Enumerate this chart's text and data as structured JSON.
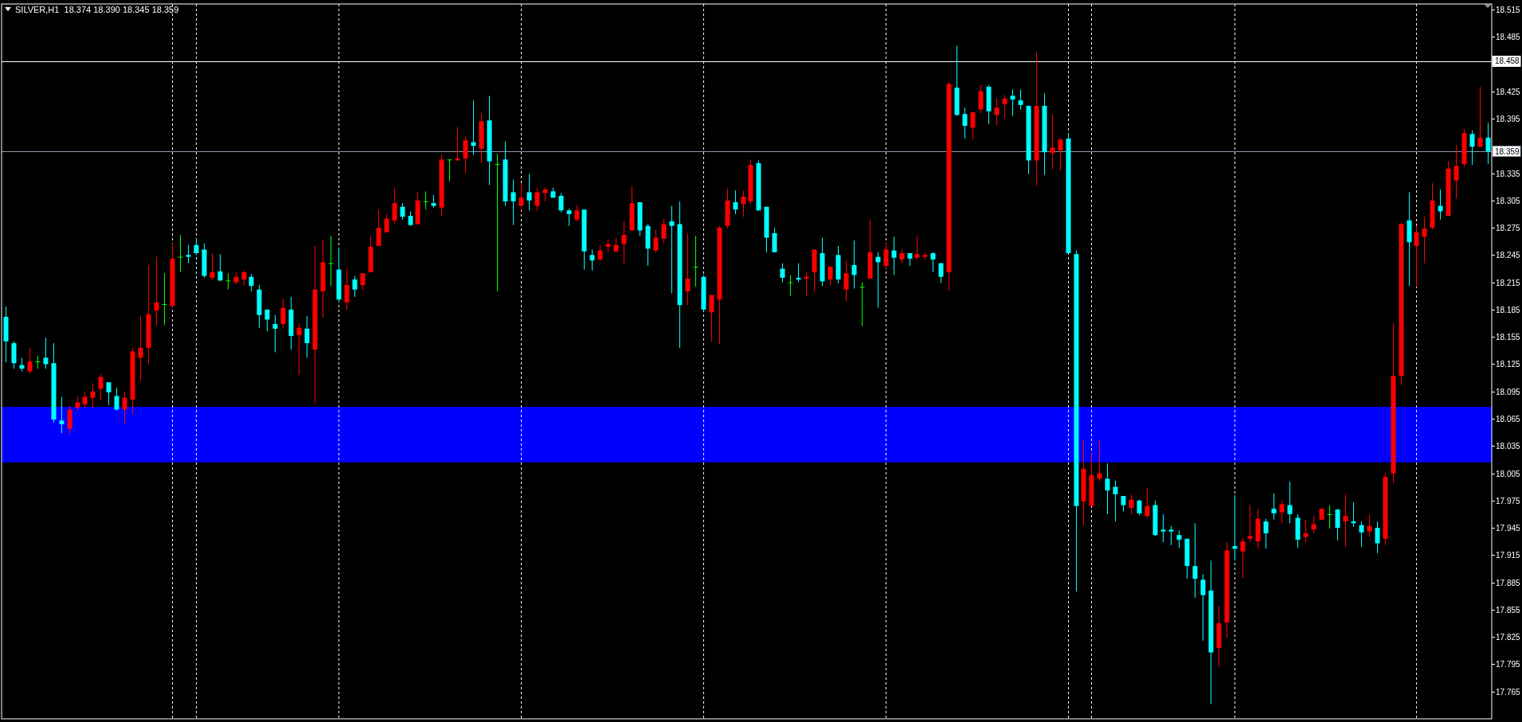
{
  "chart_data": {
    "type": "candlestick",
    "title": "SILVER,H1  18.374 18.390 18.345 18.359",
    "categories": [
      null,
      null,
      null,
      null,
      null,
      null,
      null,
      null,
      null,
      null,
      null,
      null,
      null,
      null,
      null,
      null,
      null,
      null,
      null,
      null,
      null,
      null,
      null,
      null,
      null,
      null,
      null,
      null,
      null,
      null,
      null,
      null,
      null,
      null,
      null,
      null,
      null,
      null,
      null,
      null,
      null,
      null,
      null,
      null,
      null,
      null,
      null,
      null,
      null,
      null,
      null,
      null,
      null,
      null,
      null,
      null,
      null,
      null,
      null,
      null,
      null,
      null,
      null,
      null,
      null,
      null,
      null,
      null,
      null,
      null,
      null,
      null,
      null,
      null,
      null,
      null,
      null,
      null,
      null,
      null,
      null,
      null,
      null,
      null,
      null,
      null,
      null,
      null,
      null,
      null,
      null,
      null,
      null,
      null,
      null,
      null,
      null,
      null,
      null,
      null,
      null,
      null,
      null,
      null,
      null,
      null,
      null,
      null,
      null,
      null,
      null,
      null,
      null,
      null,
      null,
      null,
      null,
      null,
      null,
      null,
      null,
      null,
      null,
      null,
      null,
      null,
      null,
      null,
      null,
      null,
      null,
      null,
      null,
      null,
      null,
      null,
      null,
      null,
      null,
      null,
      null,
      null,
      null,
      null,
      null,
      null,
      null,
      null,
      null,
      null,
      null,
      null,
      null,
      null,
      null,
      null,
      null,
      null,
      null,
      null,
      null,
      null,
      null,
      null,
      null,
      null,
      null,
      null,
      null,
      null,
      null,
      null,
      null,
      null,
      null,
      null,
      null,
      null,
      null,
      null,
      null,
      null,
      null,
      null,
      null,
      null,
      null,
      null
    ],
    "ohlc": [
      [
        18.177,
        18.188,
        18.127,
        18.15
      ],
      [
        18.148,
        18.15,
        18.12,
        18.126
      ],
      [
        18.124,
        18.132,
        18.117,
        18.12
      ],
      [
        18.117,
        18.143,
        18.115,
        18.128
      ],
      [
        18.128,
        18.134,
        18.12,
        18.128
      ],
      [
        18.132,
        18.154,
        18.12,
        18.125
      ],
      [
        18.126,
        18.148,
        18.061,
        18.064
      ],
      [
        18.063,
        18.089,
        18.049,
        18.059
      ],
      [
        18.054,
        18.079,
        18.048,
        18.075
      ],
      [
        18.077,
        18.089,
        18.074,
        18.083
      ],
      [
        18.081,
        18.094,
        18.077,
        18.089
      ],
      [
        18.088,
        18.104,
        18.077,
        18.095
      ],
      [
        18.098,
        18.114,
        18.085,
        18.111
      ],
      [
        18.105,
        18.105,
        18.08,
        18.094
      ],
      [
        18.09,
        18.099,
        18.074,
        18.075
      ],
      [
        18.075,
        18.094,
        18.06,
        18.088
      ],
      [
        18.086,
        18.143,
        18.07,
        18.139
      ],
      [
        18.132,
        18.178,
        18.107,
        18.143
      ],
      [
        18.143,
        18.234,
        18.125,
        18.18
      ],
      [
        18.184,
        18.243,
        18.168,
        18.193
      ],
      [
        18.191,
        18.225,
        18.168,
        18.191
      ],
      [
        18.189,
        18.258,
        18.188,
        18.241
      ],
      [
        18.243,
        18.267,
        18.226,
        18.243
      ],
      [
        18.245,
        18.256,
        18.236,
        18.243
      ],
      [
        18.256,
        18.263,
        18.245,
        18.247
      ],
      [
        18.251,
        18.258,
        18.22,
        18.222
      ],
      [
        18.22,
        18.247,
        18.217,
        18.226
      ],
      [
        18.227,
        18.246,
        18.216,
        18.217
      ],
      [
        18.217,
        18.225,
        18.207,
        18.217
      ],
      [
        18.215,
        18.226,
        18.213,
        18.221
      ],
      [
        18.218,
        18.228,
        18.211,
        18.226
      ],
      [
        18.221,
        18.224,
        18.205,
        18.211
      ],
      [
        18.207,
        18.212,
        18.165,
        18.179
      ],
      [
        18.185,
        18.185,
        18.161,
        18.174
      ],
      [
        18.169,
        18.179,
        18.138,
        18.164
      ],
      [
        18.169,
        18.197,
        18.164,
        18.187
      ],
      [
        18.185,
        18.199,
        18.141,
        18.156
      ],
      [
        18.157,
        18.17,
        18.113,
        18.165
      ],
      [
        18.164,
        18.178,
        18.132,
        18.148
      ],
      [
        18.141,
        18.255,
        18.082,
        18.207
      ],
      [
        18.205,
        18.262,
        18.176,
        18.237
      ],
      [
        18.236,
        18.266,
        18.211,
        18.236
      ],
      [
        18.229,
        18.253,
        18.193,
        18.196
      ],
      [
        18.193,
        18.23,
        18.185,
        18.212
      ],
      [
        18.218,
        18.222,
        18.199,
        18.207
      ],
      [
        18.212,
        18.225,
        18.207,
        18.225
      ],
      [
        18.226,
        18.266,
        18.226,
        18.254
      ],
      [
        18.255,
        18.295,
        18.255,
        18.275
      ],
      [
        18.27,
        18.29,
        18.27,
        18.285
      ],
      [
        18.283,
        18.319,
        18.279,
        18.302
      ],
      [
        18.298,
        18.302,
        18.284,
        18.287
      ],
      [
        18.288,
        18.293,
        18.277,
        18.278
      ],
      [
        18.279,
        18.314,
        18.278,
        18.305
      ],
      [
        18.304,
        18.315,
        18.295,
        18.304
      ],
      [
        18.302,
        18.311,
        18.297,
        18.299
      ],
      [
        18.297,
        18.355,
        18.288,
        18.35
      ],
      [
        18.35,
        18.35,
        18.326,
        18.35
      ],
      [
        18.349,
        18.386,
        18.349,
        18.351
      ],
      [
        18.351,
        18.375,
        18.335,
        18.371
      ],
      [
        18.369,
        18.415,
        18.355,
        18.365
      ],
      [
        18.362,
        18.401,
        18.346,
        18.392
      ],
      [
        18.393,
        18.42,
        18.322,
        18.348
      ],
      [
        18.345,
        18.356,
        18.205,
        18.345
      ],
      [
        18.35,
        18.37,
        18.299,
        18.304
      ],
      [
        18.314,
        18.328,
        18.278,
        18.304
      ],
      [
        18.299,
        18.324,
        18.294,
        18.308
      ],
      [
        18.314,
        18.334,
        18.294,
        18.305
      ],
      [
        18.299,
        18.319,
        18.293,
        18.314
      ],
      [
        18.313,
        18.319,
        18.304,
        18.317
      ],
      [
        18.315,
        18.319,
        18.308,
        18.308
      ],
      [
        18.31,
        18.313,
        18.292,
        18.294
      ],
      [
        18.294,
        18.296,
        18.277,
        18.29
      ],
      [
        18.284,
        18.3,
        18.282,
        18.294
      ],
      [
        18.295,
        18.295,
        18.229,
        18.249
      ],
      [
        18.245,
        18.251,
        18.228,
        18.239
      ],
      [
        18.24,
        18.256,
        18.239,
        18.25
      ],
      [
        18.254,
        18.262,
        18.248,
        18.257
      ],
      [
        18.249,
        18.264,
        18.248,
        18.256
      ],
      [
        18.257,
        18.282,
        18.235,
        18.267
      ],
      [
        18.272,
        18.321,
        18.272,
        18.302
      ],
      [
        18.303,
        18.303,
        18.266,
        18.272
      ],
      [
        18.277,
        18.279,
        18.233,
        18.252
      ],
      [
        18.25,
        18.273,
        18.248,
        18.264
      ],
      [
        18.263,
        18.285,
        18.258,
        18.279
      ],
      [
        18.282,
        18.299,
        18.203,
        18.277
      ],
      [
        18.279,
        18.304,
        18.143,
        18.19
      ],
      [
        18.205,
        18.269,
        18.19,
        18.219
      ],
      [
        18.232,
        18.266,
        18.21,
        18.232
      ],
      [
        18.221,
        18.223,
        18.183,
        18.185
      ],
      [
        18.182,
        18.201,
        18.15,
        18.201
      ],
      [
        18.196,
        18.277,
        18.147,
        18.275
      ],
      [
        18.277,
        18.318,
        18.274,
        18.305
      ],
      [
        18.303,
        18.316,
        18.29,
        18.295
      ],
      [
        18.301,
        18.316,
        18.287,
        18.309
      ],
      [
        18.304,
        18.35,
        18.301,
        18.344
      ],
      [
        18.346,
        18.349,
        18.294,
        18.294
      ],
      [
        18.298,
        18.298,
        18.248,
        18.264
      ],
      [
        18.269,
        18.275,
        18.248,
        18.248
      ],
      [
        18.23,
        18.236,
        18.215,
        18.22
      ],
      [
        18.215,
        18.223,
        18.2,
        18.215
      ],
      [
        18.22,
        18.236,
        18.215,
        18.218
      ],
      [
        18.219,
        18.226,
        18.2,
        18.221
      ],
      [
        18.226,
        18.251,
        18.205,
        18.251
      ],
      [
        18.247,
        18.264,
        18.211,
        18.216
      ],
      [
        18.218,
        18.233,
        18.211,
        18.232
      ],
      [
        18.245,
        18.255,
        18.214,
        18.218
      ],
      [
        18.207,
        18.239,
        18.194,
        18.225
      ],
      [
        18.234,
        18.261,
        18.208,
        18.223
      ],
      [
        18.21,
        18.215,
        18.167,
        18.21
      ],
      [
        18.219,
        18.284,
        18.219,
        18.248
      ],
      [
        18.243,
        18.248,
        18.187,
        18.237
      ],
      [
        18.233,
        18.258,
        18.23,
        18.251
      ],
      [
        18.25,
        18.265,
        18.223,
        18.242
      ],
      [
        18.24,
        18.251,
        18.236,
        18.247
      ],
      [
        18.247,
        18.247,
        18.233,
        18.241
      ],
      [
        18.242,
        18.266,
        18.24,
        18.246
      ],
      [
        18.243,
        18.248,
        18.24,
        18.245
      ],
      [
        18.247,
        18.248,
        18.226,
        18.24
      ],
      [
        18.236,
        18.236,
        18.214,
        18.221
      ],
      [
        18.226,
        18.435,
        18.206,
        18.433
      ],
      [
        18.429,
        18.475,
        18.398,
        18.399
      ],
      [
        18.4,
        18.407,
        18.373,
        18.387
      ],
      [
        18.385,
        18.402,
        18.372,
        18.402
      ],
      [
        18.405,
        18.432,
        18.401,
        18.425
      ],
      [
        18.43,
        18.432,
        18.389,
        18.403
      ],
      [
        18.399,
        18.417,
        18.388,
        18.407
      ],
      [
        18.411,
        18.421,
        18.395,
        18.417
      ],
      [
        18.42,
        18.427,
        18.398,
        18.416
      ],
      [
        18.415,
        18.427,
        18.405,
        18.41
      ],
      [
        18.409,
        18.409,
        18.334,
        18.349
      ],
      [
        18.349,
        18.468,
        18.321,
        18.409
      ],
      [
        18.409,
        18.423,
        18.333,
        18.358
      ],
      [
        18.357,
        18.399,
        18.339,
        18.363
      ],
      [
        18.36,
        18.373,
        18.338,
        18.372
      ],
      [
        18.373,
        18.379,
        18.247,
        18.247
      ],
      [
        18.246,
        18.25,
        17.875,
        17.969
      ],
      [
        17.974,
        18.042,
        17.948,
        18.01
      ],
      [
        17.969,
        18.027,
        17.969,
        18.003
      ],
      [
        17.999,
        18.042,
        17.996,
        18.005
      ],
      [
        17.999,
        18.016,
        17.96,
        17.986
      ],
      [
        17.99,
        17.997,
        17.952,
        17.982
      ],
      [
        17.98,
        17.98,
        17.963,
        17.97
      ],
      [
        17.967,
        17.982,
        17.96,
        17.976
      ],
      [
        17.975,
        17.976,
        17.959,
        17.961
      ],
      [
        17.958,
        17.989,
        17.956,
        17.969
      ],
      [
        17.97,
        17.975,
        17.936,
        17.937
      ],
      [
        17.943,
        17.96,
        17.929,
        17.941
      ],
      [
        17.943,
        17.947,
        17.926,
        17.941
      ],
      [
        17.937,
        17.942,
        17.923,
        17.932
      ],
      [
        17.933,
        17.933,
        17.889,
        17.903
      ],
      [
        17.903,
        17.95,
        17.868,
        17.889
      ],
      [
        17.888,
        17.894,
        17.821,
        17.871
      ],
      [
        17.876,
        17.909,
        17.751,
        17.808
      ],
      [
        17.813,
        17.859,
        17.792,
        17.84
      ],
      [
        17.841,
        17.929,
        17.824,
        17.92
      ],
      [
        17.925,
        17.981,
        17.909,
        17.922
      ],
      [
        17.919,
        17.934,
        17.89,
        17.93
      ],
      [
        17.933,
        17.97,
        17.93,
        17.936
      ],
      [
        17.93,
        17.966,
        17.922,
        17.955
      ],
      [
        17.952,
        17.955,
        17.922,
        17.939
      ],
      [
        17.966,
        17.983,
        17.954,
        17.961
      ],
      [
        17.962,
        17.975,
        17.95,
        17.971
      ],
      [
        17.97,
        17.996,
        17.95,
        17.96
      ],
      [
        17.956,
        17.96,
        17.923,
        17.932
      ],
      [
        17.935,
        17.954,
        17.929,
        17.939
      ],
      [
        17.943,
        17.958,
        17.939,
        17.949
      ],
      [
        17.954,
        17.966,
        17.954,
        17.966
      ],
      [
        17.96,
        17.97,
        17.944,
        17.96
      ],
      [
        17.965,
        17.966,
        17.931,
        17.945
      ],
      [
        17.952,
        17.982,
        17.924,
        17.958
      ],
      [
        17.952,
        17.973,
        17.946,
        17.95
      ],
      [
        17.948,
        17.952,
        17.924,
        17.94
      ],
      [
        17.941,
        17.96,
        17.935,
        17.947
      ],
      [
        17.945,
        17.952,
        17.917,
        17.928
      ],
      [
        17.933,
        18.005,
        17.926,
        18.001
      ],
      [
        18.005,
        18.17,
        17.994,
        18.112
      ],
      [
        18.112,
        18.28,
        18.102,
        18.279
      ],
      [
        18.283,
        18.314,
        18.211,
        18.259
      ],
      [
        18.255,
        18.277,
        18.21,
        18.27
      ],
      [
        18.265,
        18.287,
        18.236,
        18.274
      ],
      [
        18.275,
        18.324,
        18.273,
        18.305
      ],
      [
        18.299,
        18.317,
        18.284,
        18.293
      ],
      [
        18.288,
        18.348,
        18.288,
        18.34
      ],
      [
        18.327,
        18.366,
        18.307,
        18.343
      ],
      [
        18.345,
        18.384,
        18.342,
        18.379
      ],
      [
        18.378,
        18.382,
        18.344,
        18.364
      ],
      [
        18.364,
        18.43,
        18.364,
        18.374
      ],
      [
        18.374,
        18.39,
        18.345,
        18.359
      ]
    ],
    "colors": [
      "#00ffff",
      "#00ffff",
      "#00ffff",
      "#ff0000",
      "#00ff00",
      "#00ffff",
      "#00ffff",
      "#00ffff",
      "#ff0000",
      "#ff0000",
      "#ff0000",
      "#ff0000",
      "#ff0000",
      "#00ffff",
      "#00ffff",
      "#ff0000",
      "#ff0000",
      "#ff0000",
      "#ff0000",
      "#ff0000",
      "#00ff00",
      "#ff0000",
      "#00ff00",
      "#00ffff",
      "#00ffff",
      "#00ffff",
      "#ff0000",
      "#00ffff",
      "#00ff00",
      "#ff0000",
      "#ff0000",
      "#00ffff",
      "#00ffff",
      "#00ffff",
      "#00ffff",
      "#ff0000",
      "#00ffff",
      "#ff0000",
      "#00ffff",
      "#ff0000",
      "#ff0000",
      "#00ff00",
      "#00ffff",
      "#ff0000",
      "#00ffff",
      "#ff0000",
      "#ff0000",
      "#ff0000",
      "#ff0000",
      "#ff0000",
      "#00ffff",
      "#00ffff",
      "#ff0000",
      "#00ff00",
      "#00ffff",
      "#ff0000",
      "#00ff00",
      "#ff0000",
      "#ff0000",
      "#00ffff",
      "#ff0000",
      "#00ffff",
      "#00ff00",
      "#00ffff",
      "#00ffff",
      "#ff0000",
      "#00ffff",
      "#ff0000",
      "#ff0000",
      "#00ffff",
      "#00ffff",
      "#00ffff",
      "#ff0000",
      "#00ffff",
      "#00ffff",
      "#ff0000",
      "#ff0000",
      "#ff0000",
      "#ff0000",
      "#ff0000",
      "#00ffff",
      "#00ffff",
      "#ff0000",
      "#ff0000",
      "#00ffff",
      "#00ffff",
      "#ff0000",
      "#00ff00",
      "#00ffff",
      "#ff0000",
      "#ff0000",
      "#ff0000",
      "#00ffff",
      "#ff0000",
      "#ff0000",
      "#00ffff",
      "#00ffff",
      "#00ffff",
      "#00ffff",
      "#00ff00",
      "#00ffff",
      "#ff0000",
      "#ff0000",
      "#00ffff",
      "#ff0000",
      "#00ffff",
      "#ff0000",
      "#00ffff",
      "#00ff00",
      "#ff0000",
      "#00ffff",
      "#ff0000",
      "#00ffff",
      "#ff0000",
      "#00ffff",
      "#ff0000",
      "#ff0000",
      "#00ffff",
      "#00ffff",
      "#ff0000",
      "#00ffff",
      "#00ffff",
      "#ff0000",
      "#ff0000",
      "#00ffff",
      "#ff0000",
      "#ff0000",
      "#00ffff",
      "#00ffff",
      "#00ffff",
      "#ff0000",
      "#00ffff",
      "#ff0000",
      "#ff0000",
      "#00ffff",
      "#00ffff",
      "#ff0000",
      "#ff0000",
      "#ff0000",
      "#00ffff",
      "#00ffff",
      "#00ffff",
      "#ff0000",
      "#00ffff",
      "#ff0000",
      "#00ffff",
      "#00ffff",
      "#00ffff",
      "#00ffff",
      "#00ffff",
      "#00ffff",
      "#00ffff",
      "#00ffff",
      "#ff0000",
      "#ff0000",
      "#00ffff",
      "#ff0000",
      "#ff0000",
      "#ff0000",
      "#00ffff",
      "#00ffff",
      "#ff0000",
      "#00ffff",
      "#00ffff",
      "#ff0000",
      "#ff0000",
      "#ff0000",
      "#00ff00",
      "#00ffff",
      "#ff0000",
      "#00ffff",
      "#00ffff",
      "#ff0000",
      "#00ffff",
      "#ff0000",
      "#ff0000",
      "#ff0000",
      "#00ffff",
      "#ff0000",
      "#ff0000",
      "#ff0000",
      "#00ffff",
      "#ff0000",
      "#ff0000",
      "#ff0000",
      "#00ffff",
      "#ff0000",
      "#00ffff"
    ],
    "ylim": [
      17.735,
      18.521
    ],
    "yticks": [
      18.515,
      18.485,
      18.425,
      18.395,
      18.335,
      18.305,
      18.275,
      18.245,
      18.215,
      18.185,
      18.155,
      18.125,
      18.095,
      18.065,
      18.035,
      18.005,
      17.975,
      17.945,
      17.915,
      17.885,
      17.855,
      17.825,
      17.795,
      17.765
    ],
    "tick_labels": "y",
    "ref_lines": [
      {
        "axis": "y",
        "value": 18.458,
        "label": "18.458",
        "color": "#ffffff",
        "line_style": "solid"
      },
      {
        "axis": "y",
        "value": 18.359,
        "label": "18.359",
        "color": "#8899aa",
        "line_style": "solid"
      }
    ],
    "bands": [
      {
        "axis": "y",
        "from": 18.017,
        "to": 18.078,
        "color": "#0000ff"
      }
    ]
  }
}
